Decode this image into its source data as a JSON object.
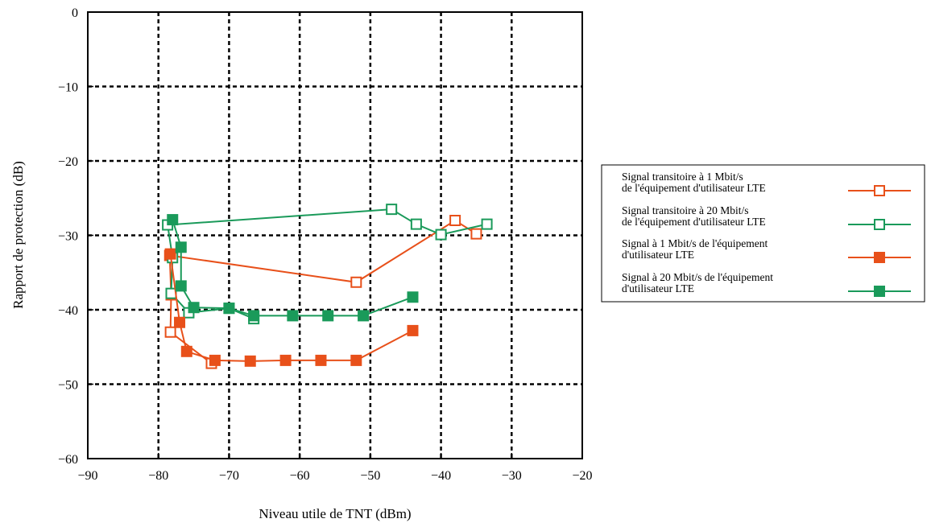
{
  "chart_data": {
    "type": "line",
    "title": "",
    "xlabel": "Niveau utile de TNT (dBm)",
    "ylabel": "Rapport de protection (dB)",
    "xlim": [
      -90,
      -20
    ],
    "ylim": [
      -60,
      0
    ],
    "xticks": [
      -90,
      -80,
      -70,
      -60,
      -50,
      -40,
      -30,
      -20
    ],
    "yticks": [
      0,
      -10,
      -20,
      -30,
      -40,
      -50,
      -60
    ],
    "xtick_labels": [
      "−90",
      "−80",
      "−70",
      "−60",
      "−50",
      "−40",
      "−30",
      "−20"
    ],
    "ytick_labels": [
      "0",
      "−10",
      "−20",
      "−30",
      "−40",
      "−50",
      "−60"
    ],
    "grid": "dashed, at inner ticks",
    "legend_position": "right, outside plot",
    "series": [
      {
        "name_lines": [
          "Signal transitoire à 1 Mbit/s",
          "de l'équipement d'utilisateur LTE"
        ],
        "color": "#e8501a",
        "marker": "open-square",
        "x": [
          -72.5,
          -78.3,
          -78.2,
          -78.4,
          -52,
          -38,
          -35
        ],
        "y": [
          -47.2,
          -43,
          -38,
          -32.7,
          -36.3,
          -28,
          -29.8
        ]
      },
      {
        "name_lines": [
          "Signal transitoire à 20 Mbit/s",
          "de l'équipement d'utilisateur LTE"
        ],
        "color": "#1a9a5a",
        "marker": "open-square",
        "x": [
          -66.5,
          -70,
          -75.7,
          -78.2,
          -78,
          -78.7,
          -47,
          -43.5,
          -40,
          -33.5
        ],
        "y": [
          -41.2,
          -39.8,
          -40.4,
          -37.8,
          -33,
          -28.6,
          -26.5,
          -28.5,
          -29.9,
          -28.5
        ]
      },
      {
        "name_lines": [
          "Signal à 1 Mbit/s de l'équipement",
          "d'utilisateur LTE"
        ],
        "color": "#e8501a",
        "marker": "filled-square",
        "x": [
          -78.3,
          -77,
          -76,
          -72,
          -67,
          -62,
          -57,
          -52,
          -44
        ],
        "y": [
          -32.5,
          -41.7,
          -45.6,
          -46.8,
          -46.9,
          -46.8,
          -46.8,
          -46.8,
          -42.8
        ]
      },
      {
        "name_lines": [
          "Signal à 20 Mbit/s de l'équipement",
          "d'utilisateur LTE"
        ],
        "color": "#1a9a5a",
        "marker": "filled-square",
        "x": [
          -78,
          -76.8,
          -76.8,
          -75,
          -70,
          -66.5,
          -61,
          -56,
          -51,
          -44
        ],
        "y": [
          -27.9,
          -31.6,
          -36.8,
          -39.7,
          -39.8,
          -40.8,
          -40.8,
          -40.8,
          -40.8,
          -38.3
        ]
      }
    ]
  }
}
